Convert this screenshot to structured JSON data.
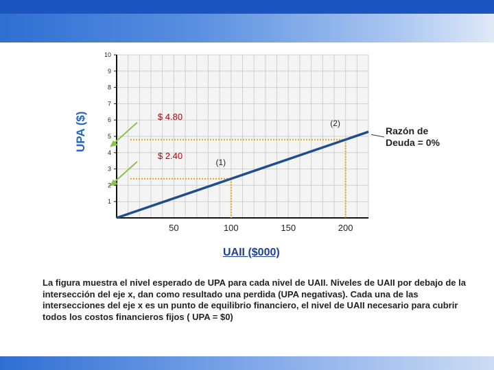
{
  "chart_data": {
    "type": "line",
    "title": "",
    "xlabel": "UAII ($000)",
    "ylabel": "UPA ($)",
    "xlim": [
      0,
      220
    ],
    "ylim": [
      0,
      10
    ],
    "x_ticks": [
      50,
      100,
      150,
      200
    ],
    "y_ticks": [
      1,
      2,
      3,
      4,
      5,
      6,
      7,
      8,
      9,
      10
    ],
    "grid": true,
    "series": [
      {
        "name": "Razón de Deuda = 0%",
        "x": [
          0,
          220
        ],
        "y": [
          0,
          5.28
        ]
      }
    ],
    "points": [
      {
        "label": "(1)",
        "x": 100,
        "y": 2.4,
        "value_label": "$ 2.40"
      },
      {
        "label": "(2)",
        "x": 200,
        "y": 4.8,
        "value_label": "$ 4.80"
      }
    ],
    "legend": "right"
  },
  "annotations": {
    "ratio_line1": "Razón de",
    "ratio_line2": "Deuda = 0%"
  },
  "caption": "La figura muestra el nivel esperado de UPA para cada nivel de UAII. Niveles de UAII por debajo de la intersección del eje x, dan como resultado una perdida (UPA negativas). Cada una de las intersecciones del eje x es un punto de equilibrio financiero, el nivel de UAII necesario para cubrir todos los costos financieros fijos ( UPA = $0)",
  "colors": {
    "line": "#1f4f8a",
    "dotted": "#e8a317",
    "arrow": "#8bc34a",
    "grid": "#cfcfcf",
    "ylabel": "#2565c4",
    "xlabel": "#1c3f9a"
  }
}
